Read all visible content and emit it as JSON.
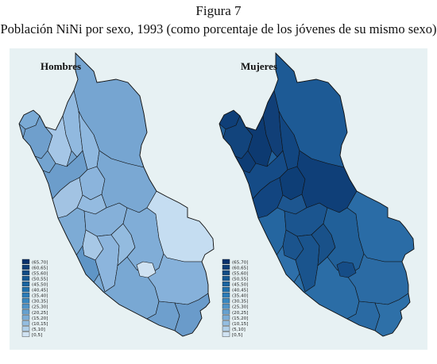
{
  "figure": {
    "label": "Figura 7",
    "subtitle": "Población NiNi por sexo, 1993 (como porcentaje de los jóvenes de su mismo sexo)"
  },
  "legend_bins": [
    "(65,70]",
    "(60,65]",
    "(55,60]",
    "(50,55]",
    "(45,50]",
    "(40,45]",
    "(35,40]",
    "(30,35]",
    "(25,30]",
    "(20,25]",
    "(15,20]",
    "(10,15]",
    "(5,10]",
    "[0,5]"
  ],
  "legend_colors": [
    "#08306b",
    "#0d3d77",
    "#114b85",
    "#155893",
    "#1a64a0",
    "#2070ad",
    "#2b7bb8",
    "#3987c0",
    "#4f93c7",
    "#65a0ce",
    "#7badd6",
    "#93bde0",
    "#b0d0ea",
    "#d0e3f3"
  ],
  "maps": [
    {
      "title": "Hombres",
      "base_color": "#74a3cf",
      "region_colors": {
        "tumbes": "#7aaad5",
        "piura": "#6f9fcc",
        "lambayeque": "#73a3cf",
        "cajamarca": "#a5c6e6",
        "amazonas": "#91b9df",
        "loreto": "#76a5d1",
        "san_martin": "#8fb8df",
        "la_libertad": "#6c9dcb",
        "ancash": "#a2c3e3",
        "huanuco": "#8bb4dc",
        "pasco": "#94bbe0",
        "ucayali": "#7aa8d3",
        "lima": "#7dabd5",
        "junin": "#85b0d9",
        "huancavelica": "#a7c8e6",
        "ica": "#5f95c6",
        "ayacucho": "#8cb5dd",
        "apurimac": "#93bbdf",
        "cusco": "#80add7",
        "madre_de_dios": "#c5ddf1",
        "arequipa": "#79a8d3",
        "puno": "#86b1da",
        "moquegua": "#6e9fcd",
        "tacna": "#6a9bca",
        "cusco_inner": "#cfe2f2"
      }
    },
    {
      "title": "Mujeres",
      "base_color": "#215f99",
      "region_colors": {
        "tumbes": "#0f3f78",
        "piura": "#12447c",
        "lambayeque": "#0e3c74",
        "cajamarca": "#0d3a71",
        "amazonas": "#113f77",
        "loreto": "#1d5a95",
        "san_martin": "#124680",
        "la_libertad": "#154b86",
        "ancash": "#124580",
        "huanuco": "#0e3e76",
        "pasco": "#1d5690",
        "ucayali": "#0f3f78",
        "lima": "#2566a0",
        "junin": "#1b558f",
        "huancavelica": "#1b548d",
        "ica": "#2e6fa9",
        "ayacucho": "#1a548d",
        "apurimac": "#195189",
        "cusco": "#216099",
        "madre_de_dios": "#2a6ca6",
        "arequipa": "#2b6da6",
        "puno": "#2b6ba4",
        "moquegua": "#2a6aa3",
        "tacna": "#2e70a8",
        "cusco_inner": "#164d87"
      }
    }
  ]
}
